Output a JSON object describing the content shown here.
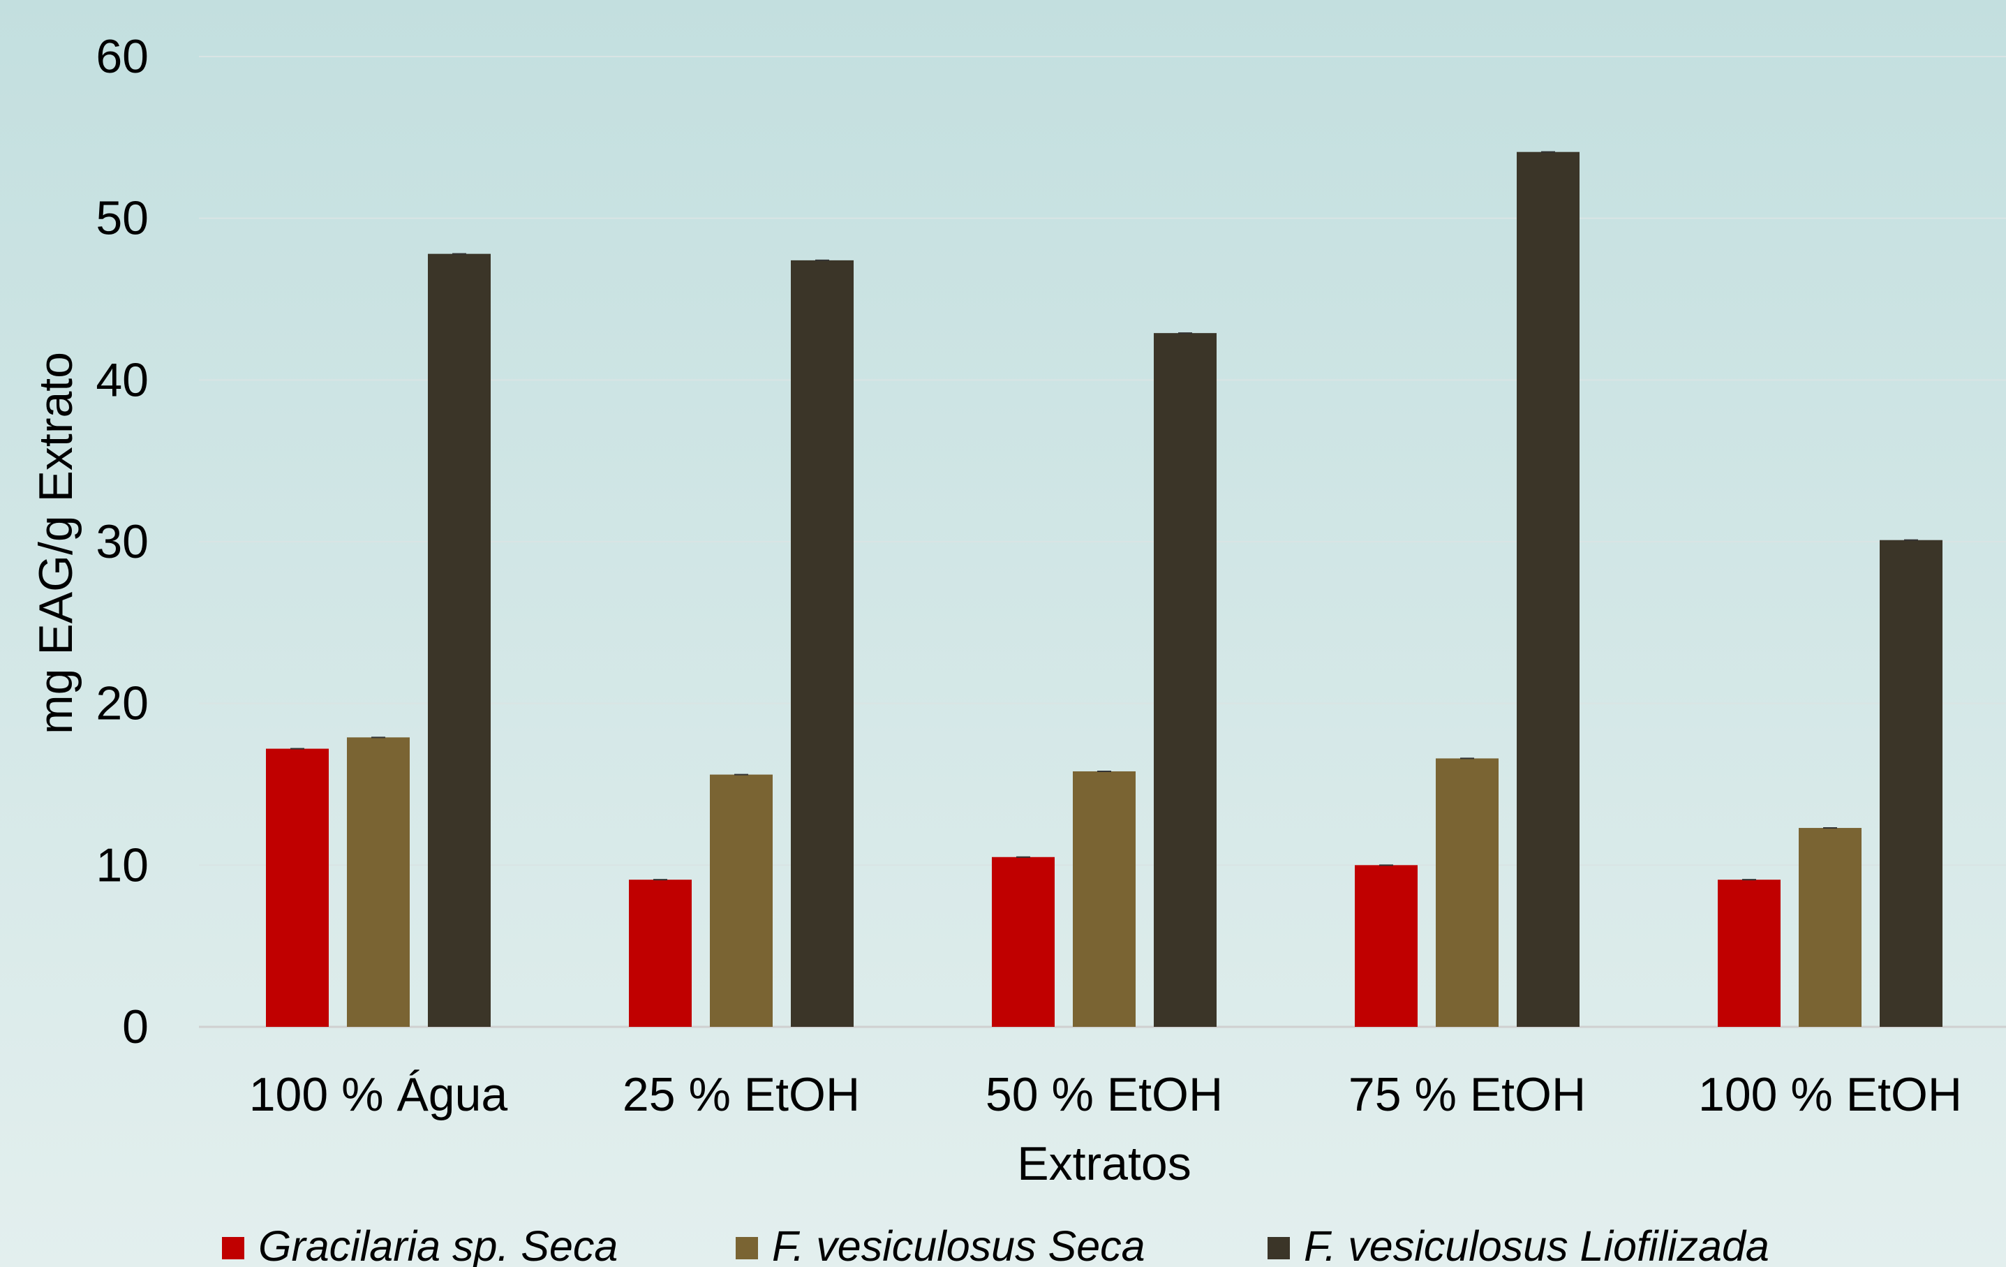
{
  "chart_data": {
    "type": "bar",
    "title": "",
    "xlabel": "Extratos",
    "ylabel": "mg EAG/g Extrato",
    "ylim": [
      0,
      60
    ],
    "yticks": [
      0,
      10,
      20,
      30,
      40,
      50,
      60
    ],
    "grid": true,
    "legend_position": "bottom",
    "categories": [
      "100 % Água",
      "25 % EtOH",
      "50 % EtOH",
      "75 % EtOH",
      "100 % EtOH"
    ],
    "series": [
      {
        "name": "Gracilaria sp. Seca",
        "color": "#c00000",
        "values": [
          17.2,
          9.1,
          10.5,
          10.0,
          9.1
        ]
      },
      {
        "name": "F. vesiculosus Seca",
        "color": "#7a6433",
        "values": [
          17.9,
          15.6,
          15.8,
          16.6,
          12.3
        ]
      },
      {
        "name": "F. vesiculosus Liofilizada",
        "color": "#3b3528",
        "values": [
          47.8,
          47.4,
          42.9,
          54.1,
          30.1
        ]
      }
    ]
  }
}
